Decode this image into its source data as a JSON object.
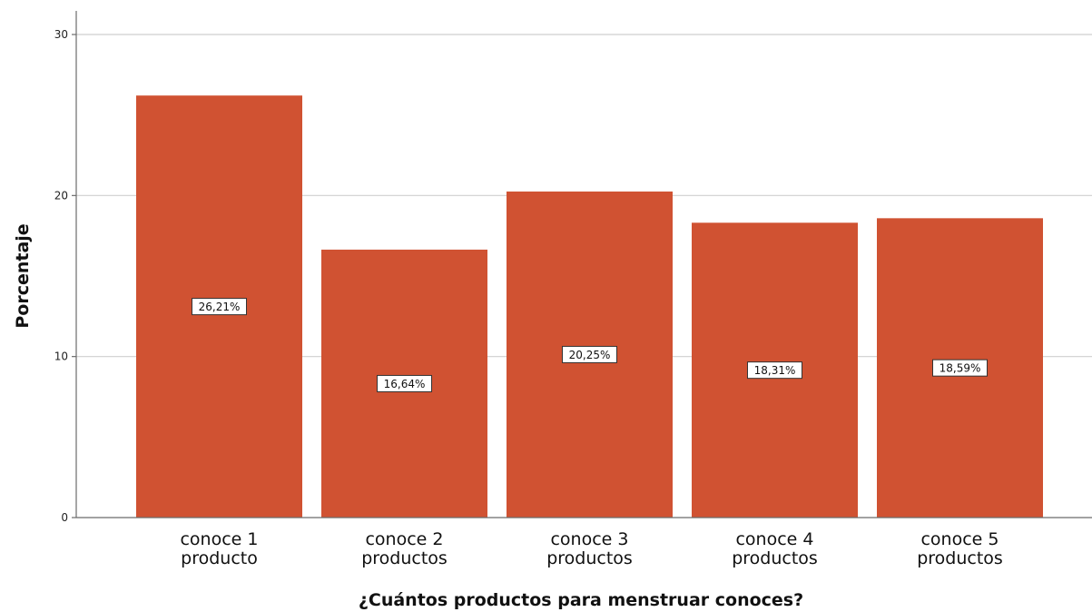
{
  "chart_data": {
    "type": "bar",
    "categories": [
      [
        "conoce 1",
        "producto"
      ],
      [
        "conoce 2",
        "productos"
      ],
      [
        "conoce 3",
        "productos"
      ],
      [
        "conoce 4",
        "productos"
      ],
      [
        "conoce 5",
        "productos"
      ]
    ],
    "values": [
      26.21,
      16.64,
      20.25,
      18.31,
      18.59
    ],
    "data_labels": [
      "26,21%",
      "16,64%",
      "20,25%",
      "18,31%",
      "18,59%"
    ],
    "yticks": [
      0,
      10,
      20,
      30
    ],
    "ylim": [
      0,
      30
    ],
    "xlabel": "¿Cuántos productos para menstruar conoces?",
    "ylabel": "Porcentaje",
    "grid": true,
    "bar_color": "#d05232"
  }
}
